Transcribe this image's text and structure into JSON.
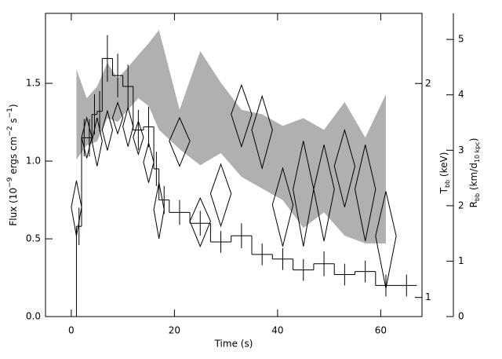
{
  "chart_data": {
    "type": "histogram",
    "xlabel": "Time (s)",
    "ylabel": [
      "Flux (10",
      "−9",
      " ergs cm",
      "−2",
      " s",
      "−1",
      ")"
    ],
    "y2label": [
      "T",
      "bb",
      " (keV)"
    ],
    "y3label": [
      "R",
      "bb",
      " (km/d",
      "10 kpc",
      ")"
    ],
    "xlim": [
      -5,
      68
    ],
    "xticks": [
      0,
      20,
      40,
      60
    ],
    "ylim": [
      0,
      1.95
    ],
    "yticks": [
      {
        "value": 0,
        "label": "0.0"
      },
      0.5,
      {
        "value": 1,
        "label": "1.0"
      },
      1.5
    ],
    "y2lim": [
      0.94,
      2.51
    ],
    "y2ticks": [
      1,
      2
    ],
    "y2log": true,
    "y3lim": [
      0,
      5.47
    ],
    "y3ticks": [
      0,
      1,
      2,
      3,
      4,
      5
    ],
    "flux": {
      "color": "#000000",
      "bins": [
        1,
        2,
        3,
        4,
        5,
        6,
        8,
        10,
        12,
        14,
        16,
        17,
        19,
        23,
        27,
        31,
        35,
        39,
        43,
        47,
        51,
        55,
        59,
        63,
        67
      ],
      "values": [
        0.58,
        1.15,
        1.15,
        1.3,
        1.32,
        1.66,
        1.55,
        1.48,
        1.2,
        1.22,
        0.95,
        0.75,
        0.67,
        0.6,
        0.48,
        0.52,
        0.4,
        0.37,
        0.3,
        0.34,
        0.27,
        0.29,
        0.2,
        0.2
      ],
      "errors": [
        0.12,
        0.12,
        0.12,
        0.13,
        0.13,
        0.15,
        0.14,
        0.14,
        0.13,
        0.13,
        0.11,
        0.09,
        0.08,
        0.08,
        0.07,
        0.08,
        0.07,
        0.07,
        0.07,
        0.08,
        0.07,
        0.07,
        0.07,
        0.07
      ]
    },
    "temperature": {
      "axis": "y2",
      "color": "#000000",
      "x": [
        1,
        3,
        5,
        7,
        9,
        11,
        13,
        15,
        17,
        21,
        25,
        29,
        33,
        37,
        41,
        45,
        49,
        53,
        57,
        61
      ],
      "xerr": [
        1,
        1,
        1,
        1,
        1,
        1,
        1,
        1,
        1,
        2,
        2,
        2,
        2,
        2,
        2,
        2,
        2,
        2,
        2,
        2
      ],
      "values": [
        1.34,
        1.68,
        1.66,
        1.72,
        1.79,
        1.74,
        1.68,
        1.55,
        1.33,
        1.66,
        1.28,
        1.4,
        1.81,
        1.72,
        1.35,
        1.42,
        1.42,
        1.53,
        1.42,
        1.22
      ],
      "errors": [
        0.12,
        0.11,
        0.13,
        0.11,
        0.09,
        0.11,
        0.09,
        0.1,
        0.12,
        0.13,
        0.1,
        0.14,
        0.18,
        0.2,
        0.17,
        0.24,
        0.22,
        0.19,
        0.22,
        0.19
      ]
    },
    "radius": {
      "axis": "y3",
      "color": "#b0b0b0",
      "x": [
        1,
        3,
        5,
        7,
        9,
        11,
        13,
        15,
        17,
        21,
        25,
        29,
        33,
        37,
        41,
        45,
        49,
        53,
        57,
        61
      ],
      "upper": [
        4.46,
        3.94,
        4.15,
        4.58,
        4.29,
        4.5,
        4.72,
        4.93,
        5.17,
        3.73,
        4.79,
        4.22,
        3.73,
        3.65,
        3.44,
        3.58,
        3.37,
        3.87,
        3.23,
        4.01
      ],
      "lower": [
        2.83,
        3.09,
        3.16,
        3.58,
        3.51,
        3.73,
        3.94,
        3.8,
        3.37,
        3.02,
        2.73,
        2.95,
        2.52,
        2.31,
        2.1,
        1.6,
        1.88,
        1.46,
        1.32,
        1.32
      ]
    }
  }
}
